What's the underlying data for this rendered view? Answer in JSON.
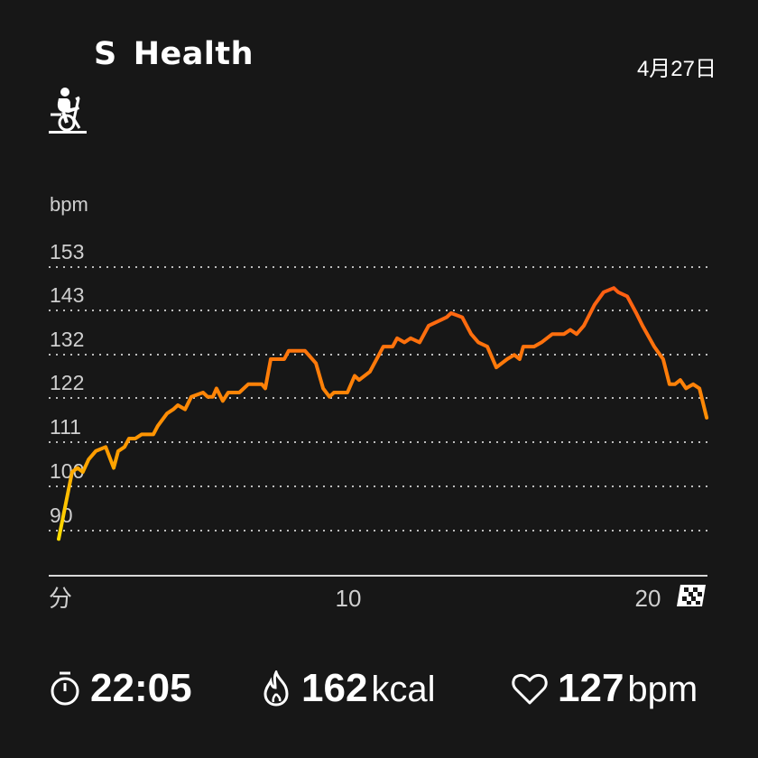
{
  "header": {
    "logo_s": "S",
    "logo_text": "Health",
    "date": "4月27日",
    "activity_icon": "exercise-bike-icon"
  },
  "chart_data": {
    "type": "line",
    "ylabel": "bpm",
    "xlabel": "分",
    "y_ticks": [
      153,
      143,
      132,
      122,
      111,
      100,
      90
    ],
    "x_ticks": [
      10,
      20
    ],
    "ylim": [
      90,
      153
    ],
    "xlim": [
      0,
      22.1
    ],
    "grid": true,
    "end_marker": "checkered-flag-icon",
    "colors": {
      "low": "#ffe000",
      "mid": "#ff9a00",
      "high": "#ff5a14"
    },
    "x": [
      0.33,
      0.78,
      0.96,
      1.14,
      1.33,
      1.57,
      1.9,
      2.17,
      2.32,
      2.53,
      2.68,
      2.89,
      3.1,
      3.49,
      3.64,
      3.95,
      4.16,
      4.31,
      4.55,
      4.76,
      5.15,
      5.3,
      5.48,
      5.6,
      5.81,
      5.99,
      6.36,
      6.66,
      7.11,
      7.23,
      7.41,
      7.86,
      8.01,
      8.55,
      8.92,
      9.16,
      9.37,
      9.52,
      9.97,
      10.21,
      10.36,
      10.72,
      11.02,
      11.17,
      11.48,
      11.63,
      11.87,
      12.08,
      12.38,
      12.68,
      12.98,
      13.28,
      13.43,
      13.8,
      14.1,
      14.34,
      14.64,
      14.94,
      15.3,
      15.54,
      15.72,
      15.84,
      16.2,
      16.45,
      16.81,
      17.2,
      17.41,
      17.62,
      17.86,
      18.22,
      18.52,
      18.86,
      19.01,
      19.31,
      19.61,
      19.82,
      20.21,
      20.51,
      20.72,
      20.9,
      21.08,
      21.27,
      21.51,
      21.72,
      21.96
    ],
    "y": [
      88,
      104,
      105,
      104,
      107,
      109,
      110,
      105,
      109,
      110,
      112,
      112,
      113,
      113,
      115,
      118,
      119,
      120,
      119,
      122,
      123,
      122,
      122,
      124,
      121,
      123,
      123,
      125,
      125,
      124,
      131,
      131,
      133,
      133,
      130,
      124,
      122,
      123,
      123,
      127,
      126,
      128,
      132,
      134,
      134,
      136,
      135,
      136,
      135,
      139,
      140,
      141,
      142,
      141,
      137,
      135,
      134,
      129,
      131,
      132,
      131,
      134,
      134,
      135,
      137,
      137,
      138,
      137,
      139,
      144,
      147,
      148,
      147,
      146,
      142,
      139,
      134,
      131,
      125,
      125,
      126,
      124,
      125,
      124,
      117
    ]
  },
  "stats": [
    {
      "icon": "stopwatch-icon",
      "value": "22:05",
      "unit": ""
    },
    {
      "icon": "flame-icon",
      "value": "162",
      "unit": "kcal"
    },
    {
      "icon": "heart-icon",
      "value": "127",
      "unit": "bpm"
    }
  ]
}
